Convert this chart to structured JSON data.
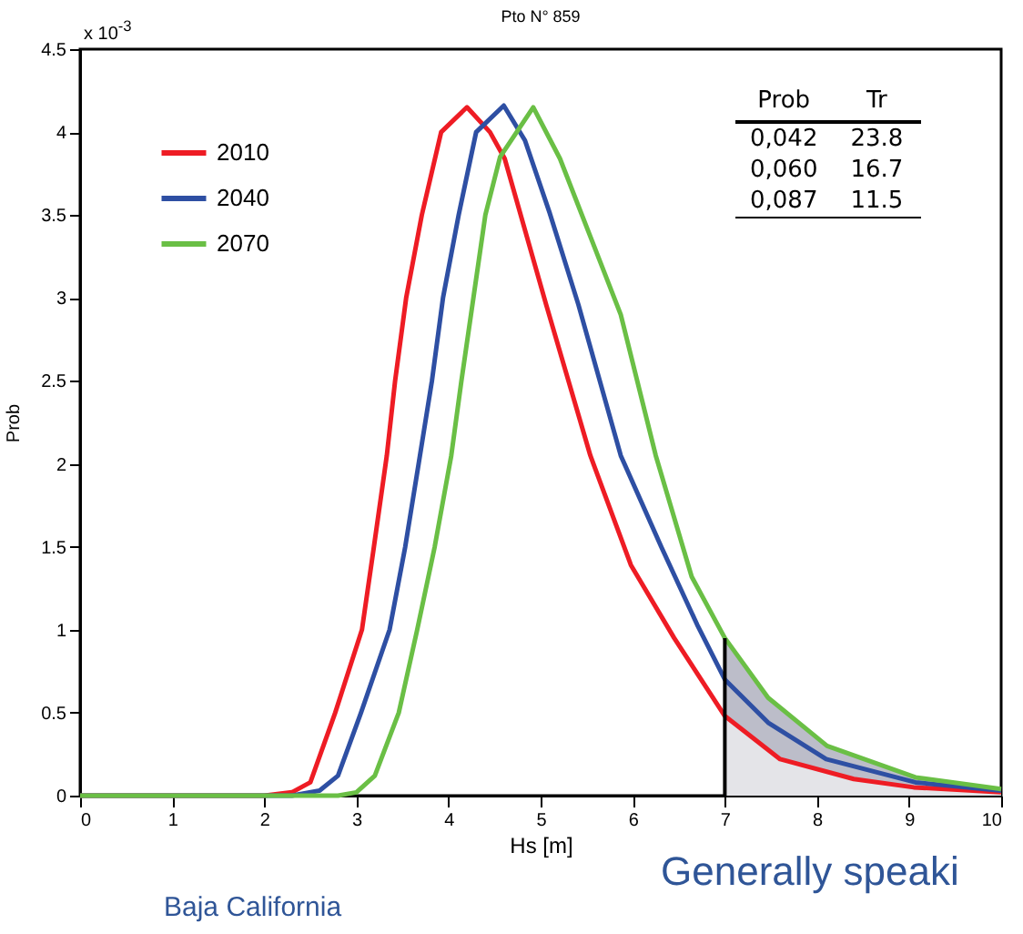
{
  "chart_data": {
    "type": "line",
    "title": "Pto N° 859",
    "xlabel": "Hs [m]",
    "ylabel": "Prob",
    "xlim": [
      0,
      10
    ],
    "xticks": [
      0,
      1,
      2,
      3,
      4,
      5,
      6,
      7,
      8,
      9,
      10
    ],
    "ylim": [
      0,
      4.5
    ],
    "yticks": [
      0,
      0.5,
      1,
      1.5,
      2,
      2.5,
      3,
      3.5,
      4,
      4.5
    ],
    "grid": false,
    "legend": "top left",
    "series": [
      {
        "type": "area",
        "color": "#bcbdc9",
        "x": [
          7,
          7.47,
          8.11,
          9.07,
          10
        ],
        "values": [
          0.95,
          0.59,
          0.3,
          0.11,
          0.04
        ]
      },
      {
        "type": "area",
        "color": "#e4e4e8",
        "x": [
          7,
          7.6,
          8.4,
          9.05,
          10
        ],
        "values": [
          0.48,
          0.22,
          0.1,
          0.05,
          0.02
        ]
      },
      {
        "name": "2010",
        "color": "#ee1c24",
        "x": [
          0,
          2,
          2.3,
          2.5,
          2.77,
          3.06,
          3.19,
          3.33,
          3.42,
          3.54,
          3.71,
          3.92,
          4.2,
          4.45,
          4.61,
          5.06,
          5.54,
          5.98,
          6.45,
          7,
          7.6,
          8.4,
          9.05,
          10
        ],
        "values": [
          0,
          0,
          0.02,
          0.08,
          0.5,
          1.0,
          1.5,
          2.05,
          2.5,
          3.0,
          3.5,
          4.0,
          4.15,
          4.0,
          3.84,
          2.96,
          2.05,
          1.39,
          0.95,
          0.48,
          0.22,
          0.1,
          0.05,
          0.02
        ]
      },
      {
        "name": "2040",
        "color": "#2e4fa3",
        "x": [
          0,
          2.3,
          2.6,
          2.8,
          3.05,
          3.36,
          3.53,
          3.69,
          3.82,
          3.94,
          4.11,
          4.3,
          4.6,
          4.83,
          5.1,
          5.41,
          5.87,
          6.31,
          6.7,
          7,
          7.47,
          8.1,
          9.07,
          10
        ],
        "values": [
          0,
          0,
          0.03,
          0.12,
          0.5,
          1.0,
          1.5,
          2.05,
          2.5,
          3.0,
          3.5,
          4.0,
          4.16,
          3.95,
          3.51,
          2.96,
          2.05,
          1.5,
          1.03,
          0.7,
          0.44,
          0.22,
          0.08,
          0.03
        ]
      },
      {
        "name": "2070",
        "color": "#6abf45",
        "x": [
          0,
          2.8,
          3.0,
          3.2,
          3.46,
          3.66,
          3.85,
          4.03,
          4.14,
          4.27,
          4.4,
          4.56,
          4.92,
          5.21,
          5.54,
          5.87,
          6.25,
          6.64,
          7,
          7.47,
          8.11,
          9.07,
          10
        ],
        "values": [
          0,
          0,
          0.02,
          0.12,
          0.5,
          1.0,
          1.5,
          2.05,
          2.5,
          3.0,
          3.5,
          3.85,
          4.15,
          3.84,
          3.37,
          2.9,
          2.05,
          1.32,
          0.95,
          0.59,
          0.3,
          0.11,
          0.04
        ]
      }
    ],
    "ref_lines": [
      {
        "axis": "x",
        "value": 7,
        "color": "#000000"
      }
    ],
    "annotations": [
      "x 10$^{-3}$",
      "Prob",
      "Tr",
      "0,042",
      "23.8",
      "0,060",
      "16.7",
      "0,087",
      "11.5",
      "Baja California",
      "Generally speaki"
    ]
  }
}
